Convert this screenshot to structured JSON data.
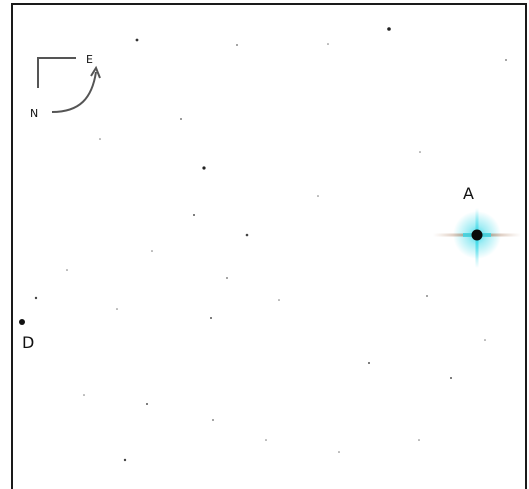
{
  "compass": {
    "north": "N",
    "east": "E"
  },
  "labels": {
    "star_a": "A",
    "star_d": "D"
  },
  "colors": {
    "background": "#ffffff",
    "border": "#1a1a1a",
    "stars": "#222222",
    "glow": "#35d8e8"
  }
}
